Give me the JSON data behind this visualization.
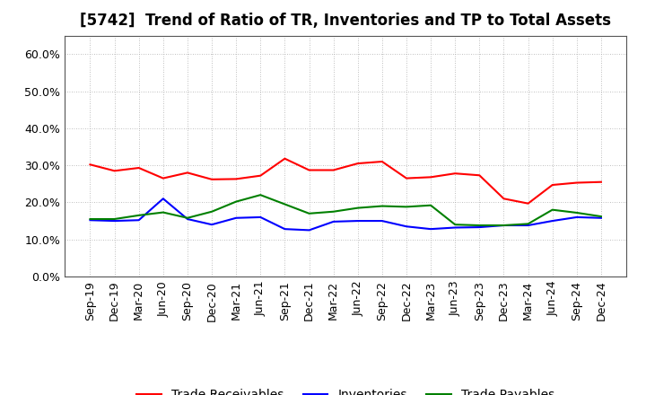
{
  "title": "[5742]  Trend of Ratio of TR, Inventories and TP to Total Assets",
  "x_labels": [
    "Sep-19",
    "Dec-19",
    "Mar-20",
    "Jun-20",
    "Sep-20",
    "Dec-20",
    "Mar-21",
    "Jun-21",
    "Sep-21",
    "Dec-21",
    "Mar-22",
    "Jun-22",
    "Sep-22",
    "Dec-22",
    "Mar-23",
    "Jun-23",
    "Sep-23",
    "Dec-23",
    "Mar-24",
    "Jun-24",
    "Sep-24",
    "Dec-24"
  ],
  "trade_receivables": [
    0.302,
    0.285,
    0.293,
    0.265,
    0.28,
    0.262,
    0.263,
    0.272,
    0.318,
    0.287,
    0.287,
    0.305,
    0.31,
    0.265,
    0.268,
    0.278,
    0.273,
    0.21,
    0.197,
    0.247,
    0.253,
    0.255
  ],
  "inventories": [
    0.152,
    0.15,
    0.152,
    0.21,
    0.155,
    0.14,
    0.158,
    0.16,
    0.128,
    0.125,
    0.148,
    0.15,
    0.15,
    0.135,
    0.128,
    0.132,
    0.133,
    0.138,
    0.138,
    0.15,
    0.16,
    0.158
  ],
  "trade_payables": [
    0.155,
    0.155,
    0.165,
    0.173,
    0.158,
    0.175,
    0.202,
    0.22,
    0.195,
    0.17,
    0.175,
    0.185,
    0.19,
    0.188,
    0.192,
    0.14,
    0.138,
    0.138,
    0.142,
    0.18,
    0.172,
    0.162
  ],
  "colors": {
    "trade_receivables": "#FF0000",
    "inventories": "#0000FF",
    "trade_payables": "#008000"
  },
  "ylim": [
    0.0,
    0.65
  ],
  "yticks": [
    0.0,
    0.1,
    0.2,
    0.3,
    0.4,
    0.5,
    0.6
  ],
  "legend_labels": [
    "Trade Receivables",
    "Inventories",
    "Trade Payables"
  ],
  "background_color": "#FFFFFF",
  "grid_color": "#AAAAAA",
  "title_fontsize": 12,
  "tick_fontsize": 9,
  "legend_fontsize": 10
}
